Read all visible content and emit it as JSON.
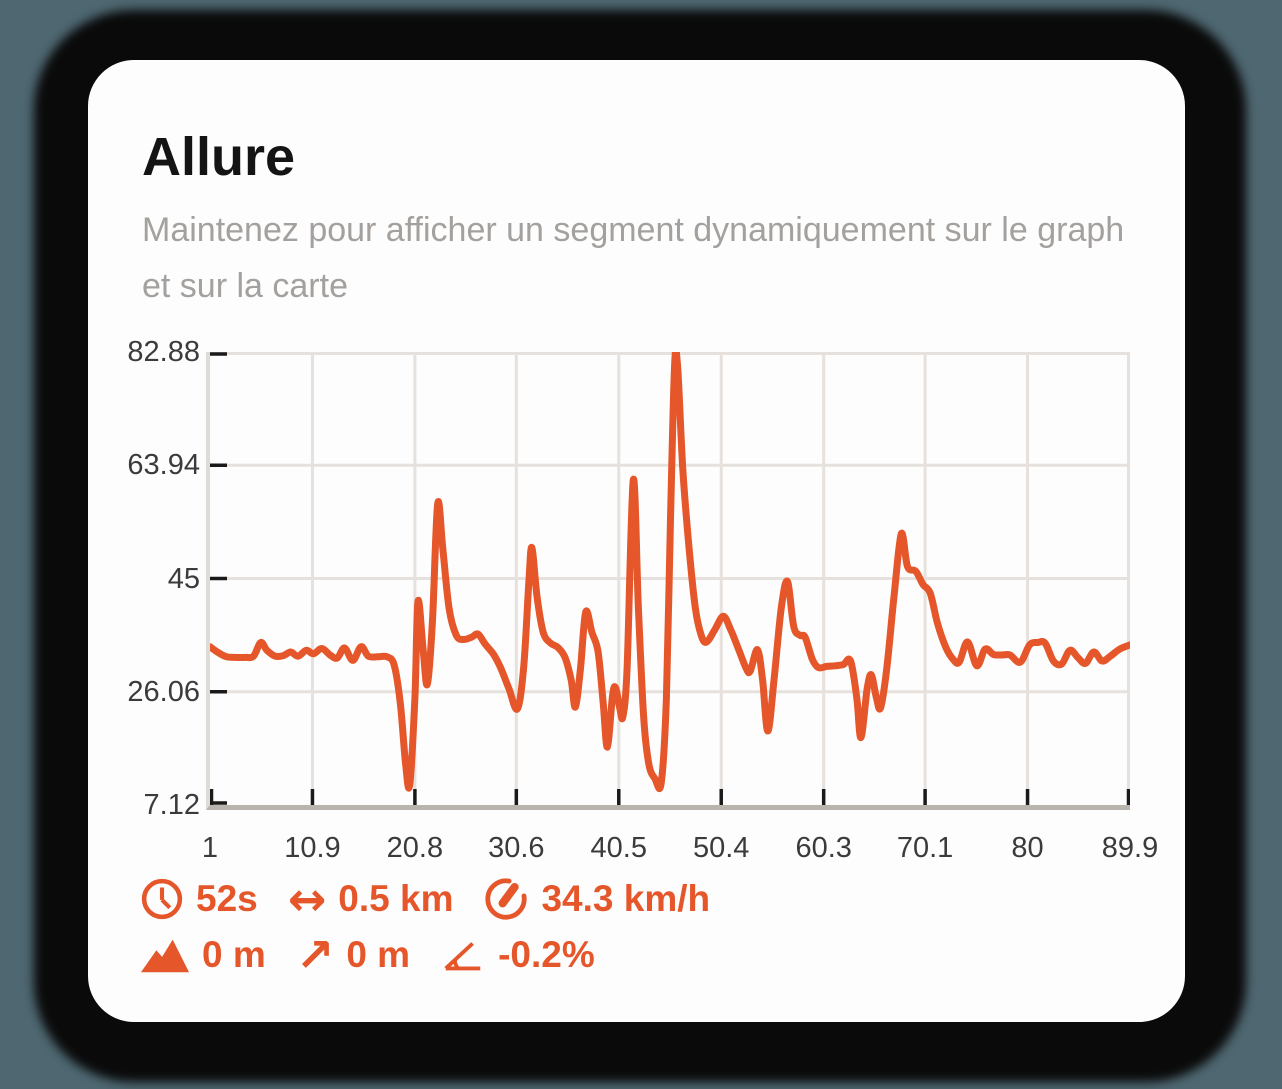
{
  "accent_color": "#e5562a",
  "page": {
    "background": "#4e6771",
    "card_color": "#fdfdfd",
    "shadow_color": "#0a0a0a"
  },
  "header": {
    "title": "Allure",
    "subtitle": "Maintenez pour afficher un segment dynamiquement sur le graph et sur la carte"
  },
  "chart_data": {
    "type": "line",
    "title": "Allure",
    "xlabel": "",
    "ylabel": "",
    "grid": true,
    "legend_position": "none",
    "xlim": [
      1,
      89.9
    ],
    "ylim": [
      7.12,
      82.88
    ],
    "x_ticks": [
      1,
      10.9,
      20.8,
      30.6,
      40.5,
      50.4,
      60.3,
      70.1,
      80,
      89.9
    ],
    "x_tick_labels": [
      "1",
      "10.9",
      "20.8",
      "30.6",
      "40.5",
      "50.4",
      "60.3",
      "70.1",
      "80",
      "89.9"
    ],
    "y_ticks": [
      7.12,
      26.06,
      45,
      63.94,
      82.88
    ],
    "y_tick_labels": [
      "7.12",
      "26.06",
      "45",
      "63.94",
      "82.88"
    ],
    "line_color": "#e5562a",
    "grid_color": "#e6e1dc",
    "axis_color": "#b9b4ae",
    "tick_color": "#1a1a1a",
    "series": [
      {
        "name": "allure",
        "points": [
          [
            1,
            33.6
          ],
          [
            1.8,
            32.6
          ],
          [
            2.6,
            31.9
          ],
          [
            3.5,
            31.8
          ],
          [
            4.4,
            31.8
          ],
          [
            5.2,
            32
          ],
          [
            5.9,
            34.3
          ],
          [
            6.5,
            33
          ],
          [
            7.3,
            32
          ],
          [
            8.1,
            32.1
          ],
          [
            8.8,
            32.7
          ],
          [
            9.5,
            32
          ],
          [
            10.3,
            33
          ],
          [
            11,
            32.4
          ],
          [
            11.8,
            33.3
          ],
          [
            12.6,
            32.2
          ],
          [
            13.3,
            31.7
          ],
          [
            14,
            33.4
          ],
          [
            14.8,
            31.3
          ],
          [
            15.6,
            33.6
          ],
          [
            16.3,
            32
          ],
          [
            17.2,
            31.9
          ],
          [
            18.1,
            31.9
          ],
          [
            18.8,
            30.5
          ],
          [
            19.4,
            24
          ],
          [
            19.9,
            14
          ],
          [
            20.3,
            10.5
          ],
          [
            20.8,
            25
          ],
          [
            21.1,
            41.2
          ],
          [
            21.6,
            33
          ],
          [
            22,
            27.3
          ],
          [
            22.5,
            38
          ],
          [
            23,
            57.5
          ],
          [
            23.5,
            50
          ],
          [
            24.1,
            40
          ],
          [
            24.8,
            35.5
          ],
          [
            25.5,
            34.8
          ],
          [
            26.3,
            35.2
          ],
          [
            26.9,
            35.7
          ],
          [
            27.6,
            34
          ],
          [
            28.4,
            32.3
          ],
          [
            29.1,
            30
          ],
          [
            29.9,
            26.5
          ],
          [
            30.7,
            23.2
          ],
          [
            31.3,
            30
          ],
          [
            31.8,
            44
          ],
          [
            32.1,
            50.2
          ],
          [
            32.6,
            42
          ],
          [
            33.2,
            36
          ],
          [
            33.9,
            34.2
          ],
          [
            34.6,
            33.5
          ],
          [
            35.3,
            31.8
          ],
          [
            35.9,
            28
          ],
          [
            36.3,
            23.5
          ],
          [
            36.8,
            30
          ],
          [
            37.3,
            39.4
          ],
          [
            37.9,
            36
          ],
          [
            38.5,
            32.7
          ],
          [
            39,
            24
          ],
          [
            39.4,
            16.8
          ],
          [
            39.9,
            25.5
          ],
          [
            40.2,
            26.7
          ],
          [
            40.6,
            23.3
          ],
          [
            40.9,
            21.9
          ],
          [
            41.3,
            30
          ],
          [
            41.9,
            61.5
          ],
          [
            42.4,
            40
          ],
          [
            42.9,
            22
          ],
          [
            43.4,
            14
          ],
          [
            44,
            11.5
          ],
          [
            44.6,
            10.8
          ],
          [
            45.1,
            25
          ],
          [
            45.5,
            55
          ],
          [
            45.9,
            81
          ],
          [
            46.2,
            80
          ],
          [
            46.7,
            63
          ],
          [
            47.3,
            50
          ],
          [
            47.9,
            40
          ],
          [
            48.5,
            35.3
          ],
          [
            49,
            34.4
          ],
          [
            49.8,
            36.5
          ],
          [
            50.6,
            38.7
          ],
          [
            51.3,
            36.5
          ],
          [
            52,
            33.5
          ],
          [
            52.8,
            30
          ],
          [
            53.2,
            29.5
          ],
          [
            53.9,
            33.1
          ],
          [
            54.4,
            28
          ],
          [
            54.9,
            19.5
          ],
          [
            55.5,
            28
          ],
          [
            56.2,
            40
          ],
          [
            56.8,
            44.5
          ],
          [
            57.4,
            37
          ],
          [
            58,
            35.5
          ],
          [
            58.5,
            35.2
          ],
          [
            59.2,
            31.5
          ],
          [
            59.8,
            30.1
          ],
          [
            60.6,
            30.3
          ],
          [
            61.4,
            30.4
          ],
          [
            62.2,
            30.6
          ],
          [
            62.9,
            31.2
          ],
          [
            63.5,
            25
          ],
          [
            63.9,
            18.4
          ],
          [
            64.5,
            26.5
          ],
          [
            64.9,
            28.9
          ],
          [
            65.4,
            25
          ],
          [
            65.8,
            23.4
          ],
          [
            66.4,
            30
          ],
          [
            67.1,
            42
          ],
          [
            67.8,
            52.5
          ],
          [
            68.4,
            47
          ],
          [
            69.2,
            46.2
          ],
          [
            69.9,
            44
          ],
          [
            70.6,
            42.5
          ],
          [
            71.3,
            37.5
          ],
          [
            72.1,
            33.5
          ],
          [
            72.8,
            31.5
          ],
          [
            73.4,
            31
          ],
          [
            74.2,
            34.4
          ],
          [
            75.1,
            30.4
          ],
          [
            75.9,
            33.2
          ],
          [
            76.7,
            32.3
          ],
          [
            77.5,
            32.2
          ],
          [
            78.3,
            32.2
          ],
          [
            79.3,
            31
          ],
          [
            80.2,
            33.9
          ],
          [
            81,
            34.3
          ],
          [
            81.7,
            34.2
          ],
          [
            82.5,
            31.2
          ],
          [
            83.3,
            30.7
          ],
          [
            84.1,
            33
          ],
          [
            84.9,
            31.7
          ],
          [
            85.6,
            30.8
          ],
          [
            86.4,
            32.7
          ],
          [
            87.2,
            31.2
          ],
          [
            88,
            32
          ],
          [
            88.9,
            33.2
          ],
          [
            89.9,
            33.9
          ]
        ]
      }
    ]
  },
  "stats": {
    "row1": [
      {
        "name": "duration",
        "icon": "clock-icon",
        "value": "52s"
      },
      {
        "name": "distance",
        "icon": "double-arrow-icon",
        "glyph": "↔",
        "value": "0.5 km"
      },
      {
        "name": "speed",
        "icon": "gauge-icon",
        "value": "34.3 km/h"
      }
    ],
    "row2": [
      {
        "name": "elevation",
        "icon": "mountain-icon",
        "value": "0 m"
      },
      {
        "name": "ascent",
        "icon": "up-right-arrow-icon",
        "glyph": "↗",
        "value": "0 m"
      },
      {
        "name": "slope",
        "icon": "angle-icon",
        "value": "-0.2%"
      }
    ]
  }
}
